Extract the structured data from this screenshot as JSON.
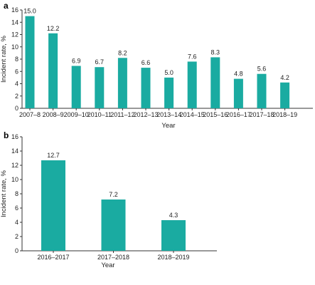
{
  "chart_data": [
    {
      "type": "bar",
      "panel_label": "a",
      "categories": [
        "2007–8",
        "2008–9",
        "2009–10",
        "2010–11",
        "2011–12",
        "2012–13",
        "2013–14",
        "2014–15",
        "2015–16",
        "2016–17",
        "2017–18",
        "2018–19"
      ],
      "values": [
        15.0,
        12.2,
        6.9,
        6.7,
        8.2,
        6.6,
        5.0,
        7.6,
        8.3,
        4.8,
        5.6,
        4.2
      ],
      "data_labels": [
        "15.0",
        "12.2",
        "6.9",
        "6.7",
        "8.2",
        "6.6",
        "5.0",
        "7.6",
        "8.3",
        "4.8",
        "5.6",
        "4.2"
      ],
      "xlabel": "Year",
      "ylabel": "Incident rate, %",
      "ylim": [
        0,
        16
      ],
      "yticks": [
        "0",
        "2",
        "4",
        "6",
        "8",
        "10",
        "12",
        "14",
        "16"
      ],
      "color": "#1aaba1",
      "grid": false
    },
    {
      "type": "bar",
      "panel_label": "b",
      "categories": [
        "2016–2017",
        "2017–2018",
        "2018–2019"
      ],
      "values": [
        12.7,
        7.2,
        4.3
      ],
      "data_labels": [
        "12.7",
        "7.2",
        "4.3"
      ],
      "xlabel": "Year",
      "ylabel": "Incident rate, %",
      "ylim": [
        0,
        16
      ],
      "yticks": [
        "0",
        "2",
        "4",
        "6",
        "8",
        "10",
        "12",
        "14",
        "16"
      ],
      "color": "#1aaba1",
      "grid": false
    }
  ]
}
